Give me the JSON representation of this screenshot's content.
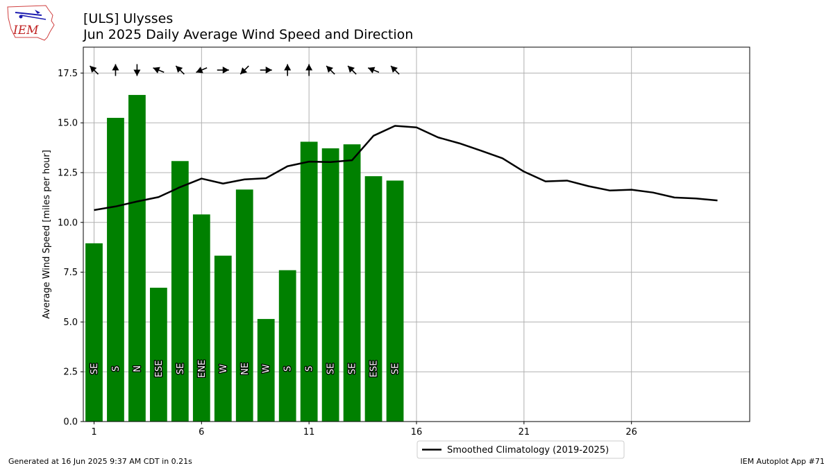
{
  "logo": {
    "text": "IEM"
  },
  "header": {
    "title": "[ULS] Ulysses",
    "subtitle": "Jun 2025 Daily Average Wind Speed and Direction"
  },
  "chart_data": {
    "type": "bar",
    "ylabel": "Average Wind Speed [miles per hour]",
    "xlim": [
      0.5,
      31.5
    ],
    "ylim": [
      0,
      18.8
    ],
    "x_ticks": [
      1,
      6,
      11,
      16,
      21,
      26
    ],
    "y_ticks": [
      "0.0",
      "2.5",
      "5.0",
      "7.5",
      "10.0",
      "12.5",
      "15.0",
      "17.5"
    ],
    "grid": true,
    "legend_position": "bottom-center",
    "colors": {
      "bars": "#008000",
      "climatology": "#000000",
      "grid": "#b0b0b0"
    },
    "days": [
      1,
      2,
      3,
      4,
      5,
      6,
      7,
      8,
      9,
      10,
      11,
      12,
      13,
      14,
      15
    ],
    "values": [
      8.95,
      15.25,
      16.4,
      6.72,
      13.08,
      10.4,
      8.33,
      11.65,
      5.15,
      7.6,
      14.05,
      13.72,
      13.92,
      12.32,
      12.1
    ],
    "direction_labels": [
      "SE",
      "S",
      "N",
      "ESE",
      "SE",
      "ENE",
      "W",
      "NE",
      "W",
      "S",
      "S",
      "SE",
      "SE",
      "ESE",
      "SE"
    ],
    "arrow_directions_deg": [
      135,
      180,
      0,
      112,
      135,
      67,
      270,
      45,
      270,
      180,
      180,
      135,
      135,
      112,
      135
    ],
    "climatology": {
      "name": "Smoothed Climatology (2019-2025)",
      "x": [
        1,
        2,
        3,
        4,
        5,
        6,
        7,
        8,
        9,
        10,
        11,
        12,
        13,
        14,
        15,
        16,
        17,
        18,
        19,
        20,
        21,
        22,
        23,
        24,
        25,
        26,
        27,
        28,
        29,
        30
      ],
      "y": [
        10.62,
        10.8,
        11.05,
        11.27,
        11.77,
        12.2,
        11.95,
        12.16,
        12.22,
        12.82,
        13.05,
        13.03,
        13.12,
        14.35,
        14.85,
        14.77,
        14.27,
        13.97,
        13.6,
        13.22,
        12.55,
        12.06,
        12.1,
        11.82,
        11.6,
        11.64,
        11.5,
        11.25,
        11.2,
        11.1
      ]
    }
  },
  "footer": {
    "generated": "Generated at 16 Jun 2025 9:37 AM CDT in 0.21s",
    "app": "IEM Autoplot App #71"
  }
}
